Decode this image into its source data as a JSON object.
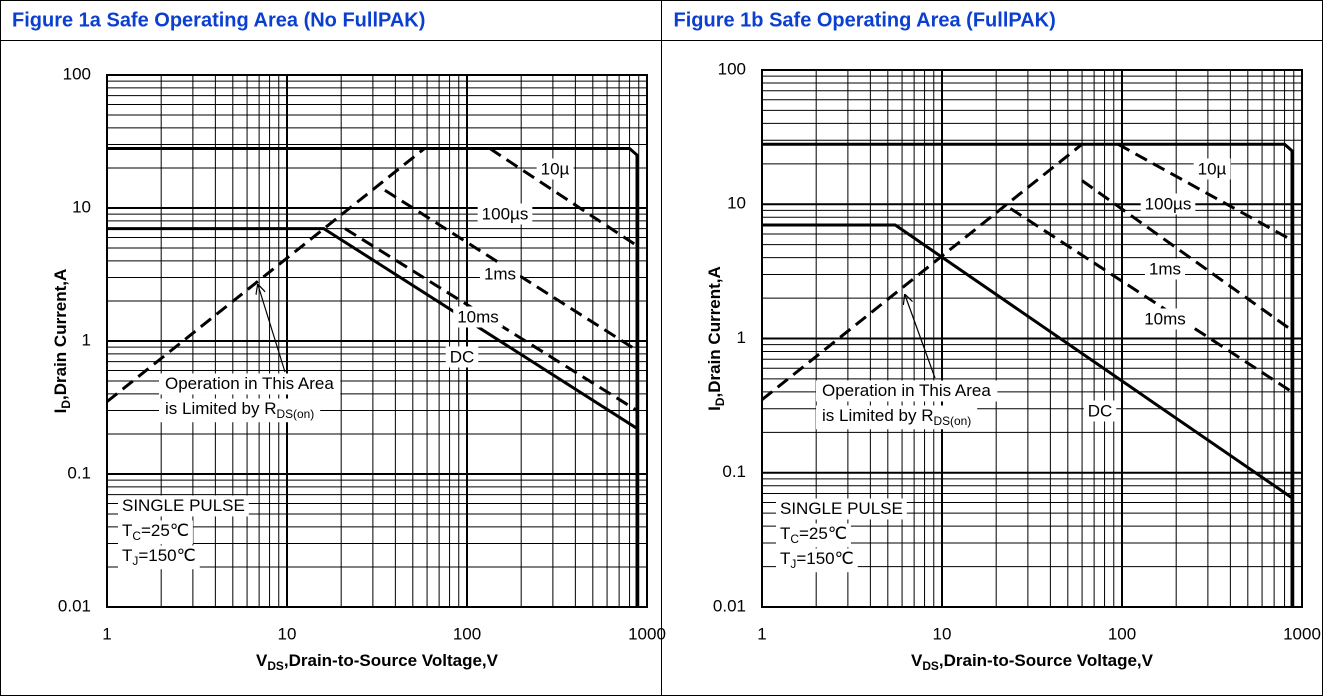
{
  "chart_data": [
    {
      "type": "line",
      "title": "Figure 1a Safe Operating Area (No FullPAK)",
      "xlabel": {
        "text": "V",
        "sub": "DS",
        "tail": ",Drain-to-Source Voltage,V"
      },
      "ylabel": {
        "text": "I",
        "sub": "D",
        "tail": ",Drain Current,A"
      },
      "xscale": "log",
      "yscale": "log",
      "grid": true,
      "xlim": [
        1,
        1000
      ],
      "ylim": [
        0.01,
        100
      ],
      "xticks": [
        1,
        10,
        100,
        1000
      ],
      "yticks": [
        0.01,
        0.1,
        1,
        10,
        100
      ],
      "series": [
        {
          "color": "#000000",
          "style": "solid",
          "x": [
            1,
            800,
            880,
            880
          ],
          "values": [
            28,
            28,
            25,
            0.01
          ]
        },
        {
          "color": "#000000",
          "style": "dashed",
          "x": [
            1,
            58
          ],
          "values": [
            0.35,
            28
          ]
        },
        {
          "color": "#000000",
          "style": "dashed",
          "x": [
            134,
            880
          ],
          "values": [
            28,
            5.2
          ]
        },
        {
          "color": "#000000",
          "style": "dashed",
          "x": [
            35,
            880
          ],
          "values": [
            13.6,
            0.85
          ]
        },
        {
          "color": "#000000",
          "style": "dashed",
          "x": [
            21,
            880
          ],
          "values": [
            7,
            0.3
          ]
        },
        {
          "color": "#000000",
          "style": "solid",
          "x": [
            1,
            16,
            880
          ],
          "values": [
            7,
            7,
            0.22
          ]
        }
      ],
      "curve_labels": [
        "10µ",
        "100µs",
        "1ms",
        "10ms",
        "DC"
      ],
      "pulse_note": [
        {
          "text": "SINGLE PULSE"
        },
        {
          "text": "T",
          "sub": "C",
          "tail": "=25℃"
        },
        {
          "text": "T",
          "sub": "J",
          "tail": "=150℃"
        }
      ],
      "rds_note": [
        {
          "text": "Operation in This Area"
        },
        {
          "text": "is Limited by R",
          "sub": "DS(on)"
        }
      ]
    },
    {
      "type": "line",
      "title": "Figure 1b Safe Operating Area (FullPAK)",
      "xlabel": {
        "text": "V",
        "sub": "DS",
        "tail": ",Drain-to-Source Voltage,V"
      },
      "ylabel": {
        "text": "I",
        "sub": "D",
        "tail": ",Drain Current,A"
      },
      "xscale": "log",
      "yscale": "log",
      "grid": true,
      "xlim": [
        1,
        1000
      ],
      "ylim": [
        0.01,
        100
      ],
      "xticks": [
        1,
        10,
        100,
        1000
      ],
      "yticks": [
        0.01,
        0.1,
        1,
        10,
        100
      ],
      "series": [
        {
          "color": "#000000",
          "style": "solid",
          "x": [
            1,
            800,
            880,
            880
          ],
          "values": [
            28,
            28,
            25,
            0.01
          ]
        },
        {
          "color": "#000000",
          "style": "dashed",
          "x": [
            1,
            60
          ],
          "values": [
            0.35,
            28
          ]
        },
        {
          "color": "#000000",
          "style": "dashed",
          "x": [
            95,
            880
          ],
          "values": [
            28,
            5.4
          ]
        },
        {
          "color": "#000000",
          "style": "dashed",
          "x": [
            60,
            880
          ],
          "values": [
            15,
            1.15
          ]
        },
        {
          "color": "#000000",
          "style": "dashed",
          "x": [
            24,
            880
          ],
          "values": [
            9.3,
            0.4
          ]
        },
        {
          "color": "#000000",
          "style": "solid",
          "x": [
            1,
            5.5,
            880
          ],
          "values": [
            7,
            7,
            0.065
          ]
        }
      ],
      "curve_labels": [
        "10µ",
        "100µs",
        "1ms",
        "10ms",
        "DC"
      ],
      "pulse_note": [
        {
          "text": "SINGLE PULSE"
        },
        {
          "text": "T",
          "sub": "C",
          "tail": "=25℃"
        },
        {
          "text": "T",
          "sub": "J",
          "tail": "=150℃"
        }
      ],
      "rds_note": [
        {
          "text": "Operation in This Area"
        },
        {
          "text": "is Limited by R",
          "sub": "DS(on)"
        }
      ]
    }
  ]
}
